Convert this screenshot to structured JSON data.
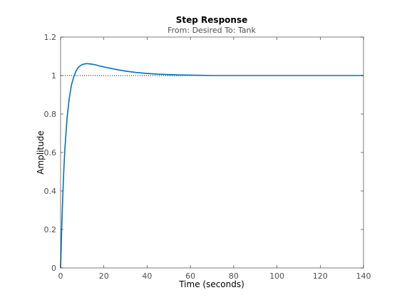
{
  "chart_data": {
    "type": "line",
    "title": "Step Response",
    "subtitle": "From: Desired  To: Tank",
    "xlabel": "Time (seconds)",
    "ylabel": "Amplitude",
    "xlim": [
      0,
      140
    ],
    "ylim": [
      0,
      1.2
    ],
    "xticks": [
      "0",
      "20",
      "40",
      "60",
      "80",
      "100",
      "120",
      "140"
    ],
    "yticks": [
      "0",
      "0.2",
      "0.4",
      "0.6",
      "0.8",
      "1",
      "1.2"
    ],
    "grid": false,
    "legend": "none",
    "reference_line": {
      "y": 1,
      "style": "dotted",
      "color": "#000000"
    },
    "series": [
      {
        "color": "#0072bd",
        "x": [
          0,
          0.5,
          1,
          1.5,
          2,
          3,
          4,
          5,
          6,
          7,
          8,
          9,
          10,
          11,
          12,
          13,
          14,
          16,
          18,
          20,
          22,
          25,
          28,
          30,
          35,
          40,
          45,
          50,
          55,
          60,
          65,
          70,
          80,
          90,
          100,
          110,
          120,
          130,
          140
        ],
        "y": [
          0,
          0.2,
          0.37,
          0.51,
          0.62,
          0.78,
          0.88,
          0.95,
          0.99,
          1.02,
          1.04,
          1.05,
          1.057,
          1.06,
          1.062,
          1.061,
          1.06,
          1.056,
          1.05,
          1.045,
          1.04,
          1.033,
          1.027,
          1.023,
          1.016,
          1.011,
          1.007,
          1.005,
          1.003,
          1.002,
          1.001,
          1.0,
          1.0,
          1.0,
          1.0,
          1.0,
          1.0,
          1.0,
          1.0
        ]
      }
    ]
  }
}
